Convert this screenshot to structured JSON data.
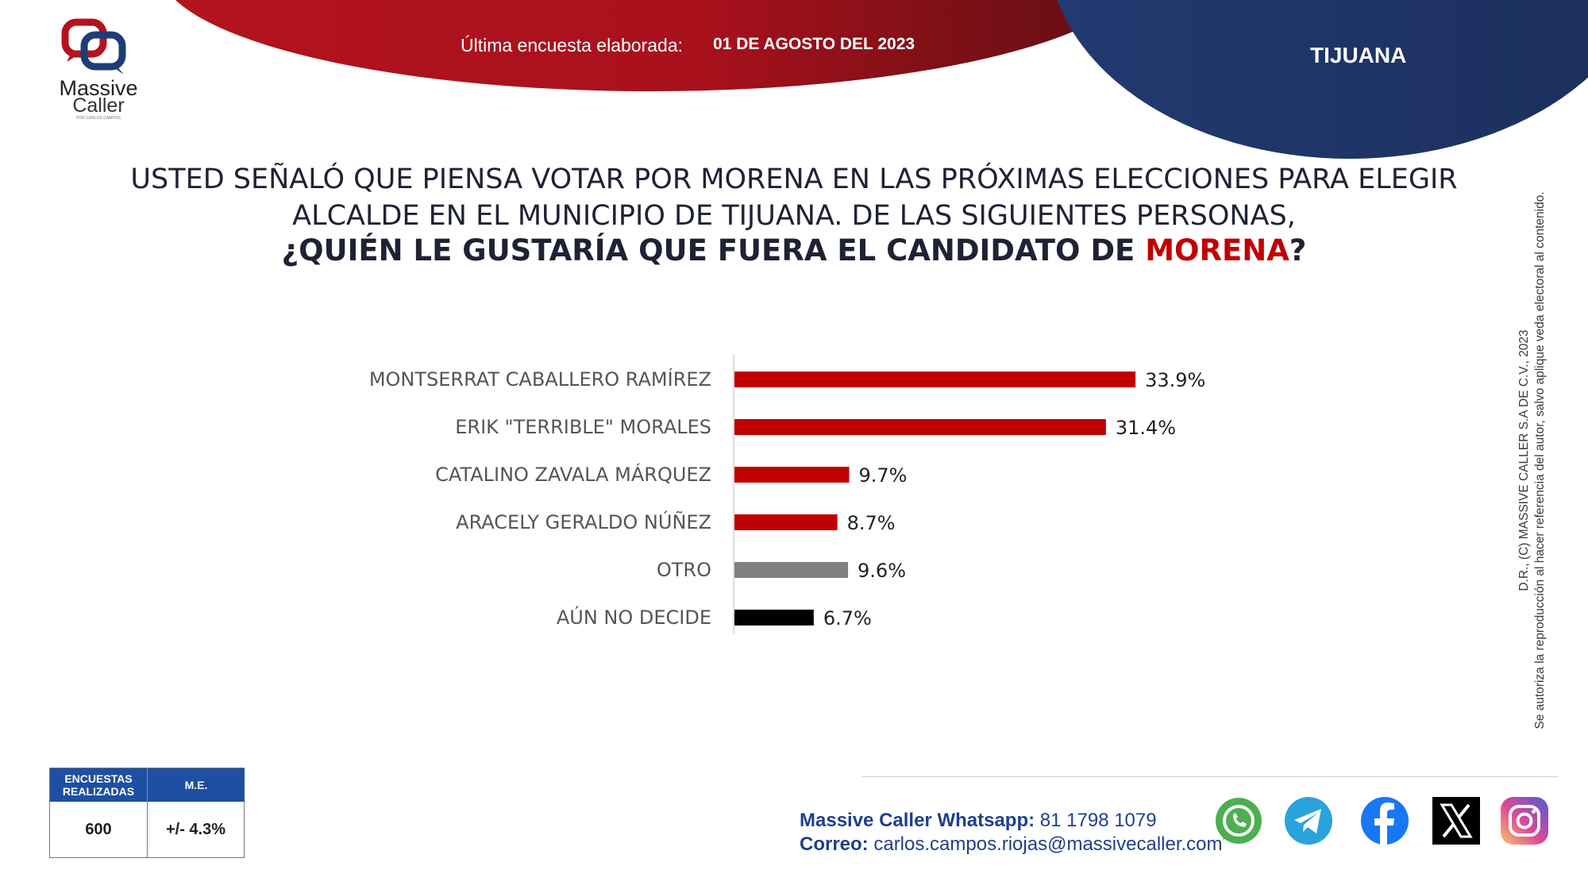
{
  "header": {
    "survey_label": "Última encuesta elaborada:",
    "survey_date": "01 DE AGOSTO DEL 2023",
    "region": "TIJUANA"
  },
  "logo": {
    "line1": "Massive",
    "line2": "Caller",
    "tagline": "POR CARLOS CAMPOS"
  },
  "question": {
    "line1": "USTED SEÑALÓ QUE PIENSA VOTAR POR MORENA EN LAS PRÓXIMAS ELECCIONES PARA ELEGIR",
    "line2": "ALCALDE EN EL MUNICIPIO DE TIJUANA. DE LAS SIGUIENTES PERSONAS,",
    "line3_prefix": "¿QUIÉN LE GUSTARÍA QUE FUERA EL CANDIDATO DE ",
    "line3_highlight": "MORENA",
    "line3_suffix": "?"
  },
  "chart_data": {
    "type": "bar",
    "orientation": "horizontal",
    "categories": [
      "MONTSERRAT CABALLERO RAMÍREZ",
      "ERIK \"TERRIBLE\" MORALES",
      "CATALINO ZAVALA MÁRQUEZ",
      "ARACELY GERALDO NÚÑEZ",
      "OTRO",
      "AÚN NO DECIDE"
    ],
    "values": [
      33.9,
      31.4,
      9.7,
      8.7,
      9.6,
      6.7
    ],
    "value_labels": [
      "33.9%",
      "31.4%",
      "9.7%",
      "8.7%",
      "9.6%",
      "6.7%"
    ],
    "colors": [
      "#c00000",
      "#c00000",
      "#c00000",
      "#c00000",
      "#808080",
      "#000000"
    ],
    "title": "",
    "xlabel": "",
    "ylabel": "",
    "xlim": [
      0,
      35
    ]
  },
  "stats": {
    "surveys_label": "ENCUESTAS REALIZADAS",
    "surveys_value": "600",
    "me_label": "M.E.",
    "me_value": "+/- 4.3%"
  },
  "contact": {
    "whatsapp_label": "Massive Caller Whatsapp:",
    "whatsapp_value": "81 1798 1079",
    "email_label": "Correo:",
    "email_value": "carlos.campos.riojas@massivecaller.com"
  },
  "side_note": {
    "line1": "D.R., (C) MASSIVE CALLER S.A DE C.V., 2023",
    "line2": "Se autoriza la reproducción al hacer referencia del autor, salvo aplique veda electoral al contenido."
  },
  "social": [
    "whatsapp-icon",
    "telegram-icon",
    "facebook-icon",
    "x-icon",
    "instagram-icon"
  ]
}
